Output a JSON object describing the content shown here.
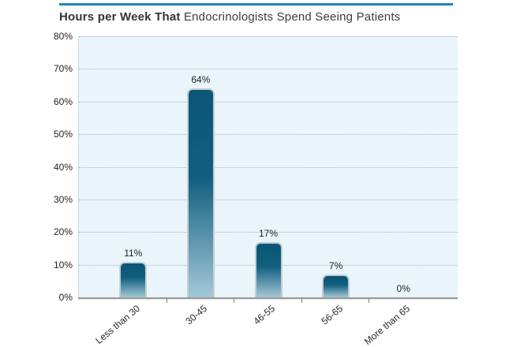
{
  "header": {
    "title_bold": "Hours per Week That",
    "title_regular": "Endocrinologists Spend Seeing Patients"
  },
  "chart_data": {
    "type": "bar",
    "title": "Hours per Week That Endocrinologists Spend Seeing Patients",
    "categories": [
      "Less than 30",
      "30-45",
      "46-55",
      "56-65",
      "More than 65"
    ],
    "values": [
      11,
      64,
      17,
      7,
      0
    ],
    "value_labels": [
      "11%",
      "64%",
      "17%",
      "7%",
      "0%"
    ],
    "xlabel": "",
    "ylabel": "",
    "ylim": [
      0,
      80
    ],
    "y_ticks": [
      0,
      10,
      20,
      30,
      40,
      50,
      60,
      70,
      80
    ],
    "y_tick_labels": [
      "0%",
      "10%",
      "20%",
      "30%",
      "40%",
      "50%",
      "60%",
      "70%",
      "80%"
    ],
    "grid": "horizontal-dotted",
    "legend": "none"
  },
  "colors": {
    "accent_rule": "#1a86b8",
    "plot_background": "#e9f5fa",
    "bar_gradient_top": "#0b5677",
    "bar_gradient_mid": "#115e7f",
    "bar_gradient_bottom": "#a3c8d7",
    "bar_border": "#c7ced2",
    "gridline": "#a3b2ba",
    "axis_line": "#9a9a9a",
    "text": "#1f1f1f"
  }
}
